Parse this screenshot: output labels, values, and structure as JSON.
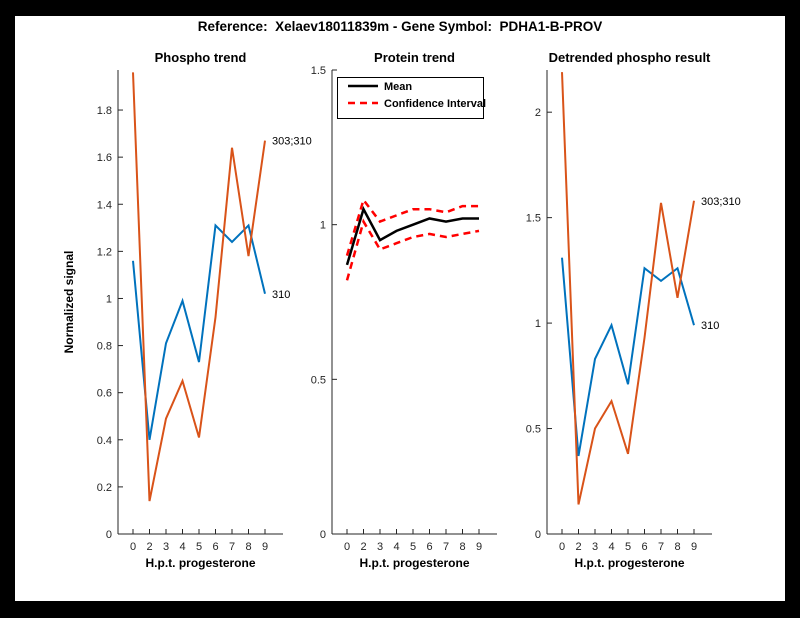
{
  "figure": {
    "title": "Reference:  Xelaev18011839m - Gene Symbol:  PDHA1-B-PROV",
    "frame_color": "#000000",
    "canvas_color": "#ffffff",
    "axis_color": "#262626",
    "text_color": "#000000"
  },
  "chart_data": [
    {
      "type": "line",
      "title": "Phospho trend",
      "xlabel": "H.p.t. progesterone",
      "ylabel": "Normalized signal",
      "x_hours": [
        0,
        2,
        3,
        4,
        5,
        6,
        7,
        8,
        9
      ],
      "x_tick_labels": [
        "0",
        "2",
        "3",
        "4",
        "5",
        "6",
        "7",
        "8",
        "9"
      ],
      "ylim": [
        0,
        1.97
      ],
      "yticks": [
        0,
        0.2,
        0.4,
        0.6,
        0.8,
        1,
        1.2,
        1.4,
        1.6,
        1.8
      ],
      "ytick_labels": [
        "0",
        "0.2",
        "0.4",
        "0.6",
        "0.8",
        "1",
        "1.2",
        "1.4",
        "1.6",
        "1.8"
      ],
      "grid": false,
      "legend": null,
      "series": [
        {
          "name": "310",
          "color": "#0072BD",
          "style": "solid",
          "width": 2,
          "values": [
            1.16,
            0.4,
            0.81,
            0.99,
            0.73,
            1.31,
            1.24,
            1.31,
            1.02
          ],
          "end_label": "310"
        },
        {
          "name": "303;310",
          "color": "#D95319",
          "style": "solid",
          "width": 2,
          "values": [
            1.96,
            0.14,
            0.49,
            0.65,
            0.41,
            0.92,
            1.64,
            1.18,
            1.67
          ],
          "end_label": "303;310"
        }
      ]
    },
    {
      "type": "line",
      "title": "Protein trend",
      "xlabel": "H.p.t. progesterone",
      "ylabel": "",
      "x_hours": [
        0,
        2,
        3,
        4,
        5,
        6,
        7,
        8,
        9
      ],
      "x_tick_labels": [
        "0",
        "2",
        "3",
        "4",
        "5",
        "6",
        "7",
        "8",
        "9"
      ],
      "ylim": [
        0,
        1.5
      ],
      "yticks": [
        0,
        0.5,
        1,
        1.5
      ],
      "ytick_labels": [
        "0",
        "0.5",
        "1",
        "1.5"
      ],
      "grid": false,
      "legend": {
        "position": "top-left-inside",
        "items": [
          {
            "label": "Mean",
            "color": "#000000",
            "style": "solid"
          },
          {
            "label": "Confidence Interval",
            "color": "#FF0000",
            "style": "dashed"
          }
        ]
      },
      "series": [
        {
          "name": "ci_upper",
          "color": "#FF0000",
          "style": "dashed",
          "width": 2.5,
          "values": [
            0.9,
            1.08,
            1.01,
            1.03,
            1.05,
            1.05,
            1.04,
            1.06,
            1.06
          ],
          "end_label": null
        },
        {
          "name": "ci_lower",
          "color": "#FF0000",
          "style": "dashed",
          "width": 2.5,
          "values": [
            0.82,
            1.01,
            0.92,
            0.94,
            0.96,
            0.97,
            0.96,
            0.97,
            0.98
          ],
          "end_label": null
        },
        {
          "name": "mean",
          "color": "#000000",
          "style": "solid",
          "width": 2.5,
          "values": [
            0.87,
            1.05,
            0.95,
            0.98,
            1.0,
            1.02,
            1.01,
            1.02,
            1.02
          ],
          "end_label": null
        }
      ]
    },
    {
      "type": "line",
      "title": "Detrended phospho result",
      "xlabel": "H.p.t. progesterone",
      "ylabel": "",
      "x_hours": [
        0,
        2,
        3,
        4,
        5,
        6,
        7,
        8,
        9
      ],
      "x_tick_labels": [
        "0",
        "2",
        "3",
        "4",
        "5",
        "6",
        "7",
        "8",
        "9"
      ],
      "ylim": [
        0,
        2.2
      ],
      "yticks": [
        0,
        0.5,
        1,
        1.5,
        2
      ],
      "ytick_labels": [
        "0",
        "0.5",
        "1",
        "1.5",
        "2"
      ],
      "grid": false,
      "legend": null,
      "series": [
        {
          "name": "310",
          "color": "#0072BD",
          "style": "solid",
          "width": 2,
          "values": [
            1.31,
            0.37,
            0.83,
            0.99,
            0.71,
            1.26,
            1.2,
            1.26,
            0.99
          ],
          "end_label": "310"
        },
        {
          "name": "303;310",
          "color": "#D95319",
          "style": "solid",
          "width": 2,
          "values": [
            2.19,
            0.14,
            0.5,
            0.63,
            0.38,
            0.93,
            1.57,
            1.12,
            1.58
          ],
          "end_label": "303;310"
        }
      ]
    }
  ]
}
